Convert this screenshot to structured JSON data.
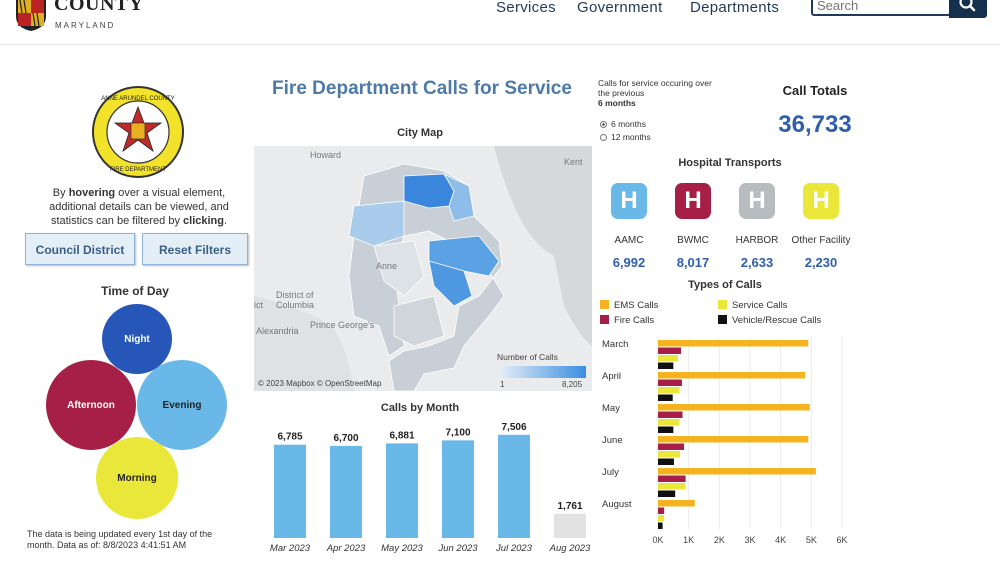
{
  "header": {
    "logo_title": "ANNE ARUNDEL\nCOUNTY",
    "logo_title_line2": "COUNTY",
    "logo_subtitle": "MARYLAND",
    "nav": [
      "Services",
      "Government",
      "Departments"
    ],
    "search_placeholder": "Search"
  },
  "left_panel": {
    "intro_parts": [
      "By ",
      "hovering",
      " over a visual element, additional details can be viewed, and statistics can be filtered by ",
      "clicking",
      "."
    ],
    "buttons": {
      "council_district": "Council District",
      "reset_filters": "Reset Filters"
    },
    "time_of_day_title": "Time of Day",
    "time_of_day": [
      {
        "label": "Night",
        "color": "#2657b8"
      },
      {
        "label": "Afternoon",
        "color": "#a51f47"
      },
      {
        "label": "Evening",
        "color": "#6ab8e8"
      },
      {
        "label": "Morning",
        "color": "#e9e83a"
      }
    ],
    "update_note": "The data is being updated every 1st day of the month. Data as of: 8/8/2023 4:41:51 AM"
  },
  "center": {
    "title": "Fire Department Calls for Service",
    "map_title": "City Map",
    "map_labels": [
      "Howard",
      "Kent",
      "Anne",
      "District of",
      "Columbia",
      "Prince George's",
      "Alexandria",
      "ict"
    ],
    "map_credit": "© 2023 Mapbox © OpenStreetMap",
    "legend_title": "Number of Calls",
    "legend_min": "1",
    "legend_max": "8,205"
  },
  "right_panel": {
    "period_note": "Calls for service occuring over the previous",
    "period_note_bold": "6 months",
    "period_options": [
      "6 months",
      "12 months"
    ],
    "period_selected": "6 months",
    "totals_label": "Call Totals",
    "totals_value": "36,733",
    "hospital_title": "Hospital Transports",
    "hospitals": [
      {
        "name": "AAMC",
        "value": "6,992",
        "color": "#6ab8e8",
        "icon": "H"
      },
      {
        "name": "BWMC",
        "value": "8,017",
        "color": "#a51f47",
        "icon": "H"
      },
      {
        "name": "HARBOR",
        "value": "2,633",
        "color": "#b7bcbf",
        "icon": "H"
      },
      {
        "name": "Other Facility",
        "value": "2,230",
        "color": "#e9e83a",
        "icon": "H"
      }
    ],
    "types_title": "Types of Calls",
    "types_legend": [
      {
        "name": "EMS Calls",
        "color": "#f5b322"
      },
      {
        "name": "Service Calls",
        "color": "#e9e83a"
      },
      {
        "name": "Fire Calls",
        "color": "#a51f47"
      },
      {
        "name": "Vehicle/Rescue Calls",
        "color": "#111111"
      }
    ]
  },
  "chart_data": [
    {
      "type": "bar",
      "title": "Calls by Month",
      "categories": [
        "Mar 2023",
        "Apr 2023",
        "May 2023",
        "Jun 2023",
        "Jul 2023",
        "Aug 2023"
      ],
      "values": [
        6785,
        6700,
        6881,
        7100,
        7506,
        1761
      ],
      "value_labels": [
        "6,785",
        "6,700",
        "6,881",
        "7,100",
        "7,506",
        "1,761"
      ],
      "colors": [
        "#6ab8e8",
        "#6ab8e8",
        "#6ab8e8",
        "#6ab8e8",
        "#6ab8e8",
        "#e2e2e2"
      ],
      "ylim": [
        0,
        8000
      ]
    },
    {
      "type": "bar",
      "title": "Types of Calls",
      "orientation": "horizontal",
      "categories": [
        "March",
        "April",
        "May",
        "June",
        "July",
        "August"
      ],
      "series": [
        {
          "name": "EMS Calls",
          "color": "#f5b322",
          "values": [
            4900,
            4800,
            4950,
            4900,
            5150,
            1200
          ]
        },
        {
          "name": "Fire Calls",
          "color": "#a51f47",
          "values": [
            750,
            780,
            800,
            850,
            900,
            200
          ]
        },
        {
          "name": "Service Calls",
          "color": "#e9e83a",
          "values": [
            650,
            700,
            700,
            720,
            900,
            200
          ]
        },
        {
          "name": "Vehicle/Rescue Calls",
          "color": "#111111",
          "values": [
            500,
            480,
            500,
            520,
            560,
            150
          ]
        }
      ],
      "xticks": [
        "0K",
        "1K",
        "2K",
        "3K",
        "4K",
        "5K",
        "6K"
      ],
      "xlim": [
        0,
        6000
      ]
    }
  ]
}
